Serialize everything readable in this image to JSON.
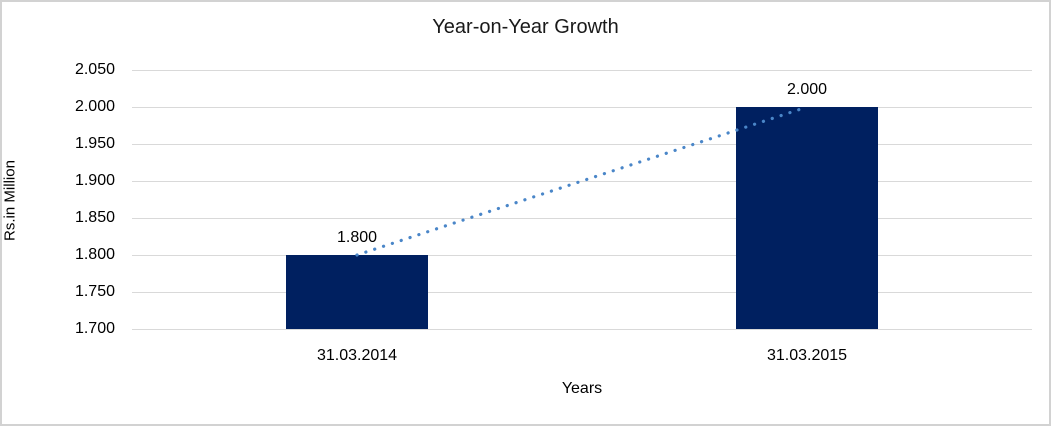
{
  "window": {
    "background": "#ffffff",
    "frame_border_color": "#d2d2d2"
  },
  "chart_data": {
    "type": "bar",
    "title": "Year-on-Year Growth",
    "xlabel": "Years",
    "ylabel": "Rs.in Million",
    "categories": [
      "31.03.2014",
      "31.03.2015"
    ],
    "values": [
      1.8,
      2.0
    ],
    "value_labels": [
      "1.800",
      "2.000"
    ],
    "y_ticks": [
      2.05,
      2.0,
      1.95,
      1.9,
      1.85,
      1.8,
      1.75,
      1.7
    ],
    "y_tick_labels": [
      "2.050",
      "2.000",
      "1.950",
      "1.900",
      "1.850",
      "1.800",
      "1.750",
      "1.700"
    ],
    "ylim": [
      1.7,
      2.05
    ],
    "grid": true,
    "legend": false,
    "bar_color": "#002060",
    "gridline_color": "#d9d9d9",
    "text_color": "#000000",
    "trendline": {
      "style": "dotted",
      "color": "#4a86c8",
      "from_value": 1.8,
      "to_value": 2.0
    }
  }
}
